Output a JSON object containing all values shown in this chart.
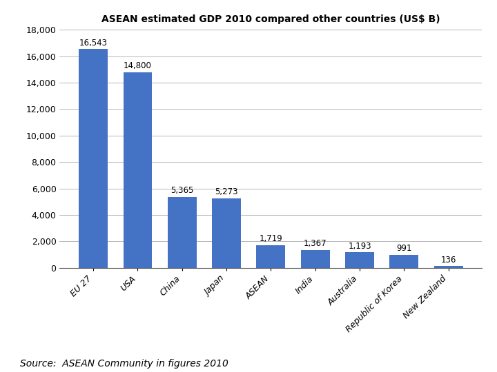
{
  "title": "ASEAN estimated GDP 2010 compared other countries (US$ B)",
  "categories": [
    "EU 27",
    "USA",
    "China",
    "Japan",
    "ASEAN",
    "India",
    "Australia",
    "Republic of Korea",
    "New Zealand"
  ],
  "values": [
    16543,
    14800,
    5365,
    5273,
    1719,
    1367,
    1193,
    991,
    136
  ],
  "labels": [
    "16,543",
    "14,800",
    "5,365",
    "5,273",
    "1,719",
    "1,367",
    "1,193",
    "991",
    "136"
  ],
  "bar_color": "#4472C4",
  "ylim": [
    0,
    18000
  ],
  "yticks": [
    0,
    2000,
    4000,
    6000,
    8000,
    10000,
    12000,
    14000,
    16000,
    18000
  ],
  "source_text": "Source:  ASEAN Community in figures 2010",
  "title_fontsize": 10,
  "label_fontsize": 8.5,
  "tick_fontsize": 9,
  "source_fontsize": 10
}
